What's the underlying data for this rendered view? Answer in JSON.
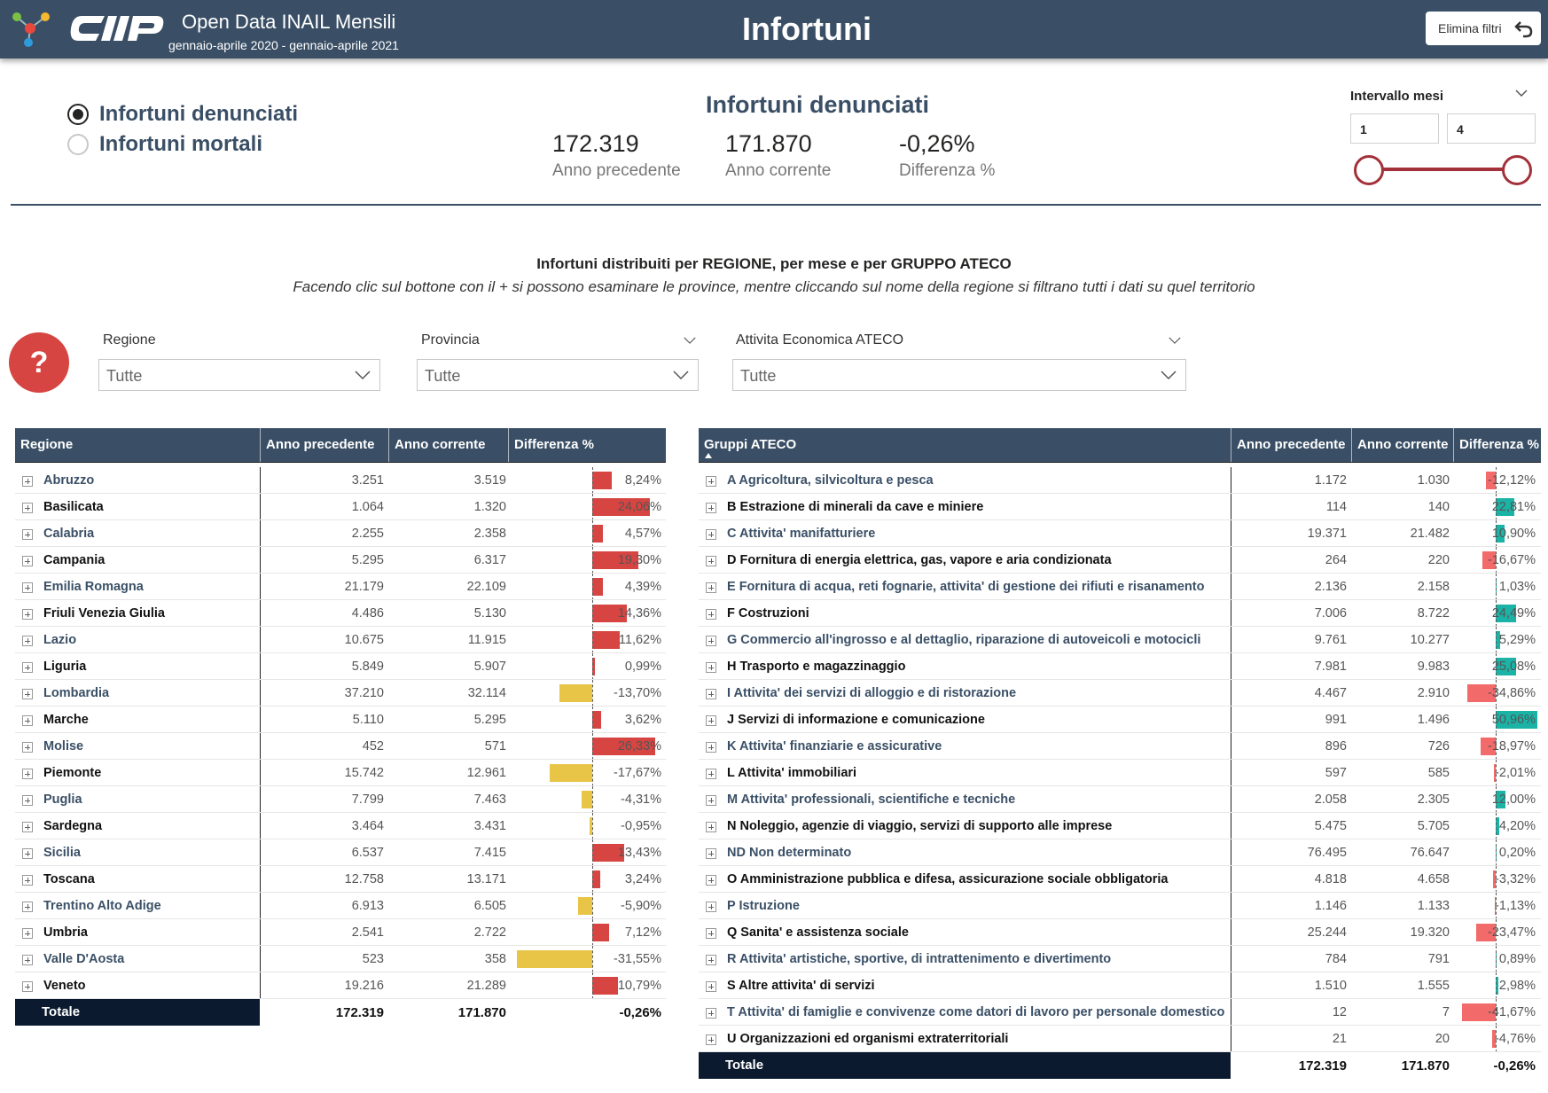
{
  "header": {
    "app_title": "Open Data INAIL Mensili",
    "period": "gennaio-aprile 2020 - gennaio-aprile 2021",
    "page_title": "Infortuni",
    "reset_label": "Elimina filtri",
    "logo_text": "CIIP"
  },
  "measure_selector": {
    "options": [
      {
        "label": "Infortuni denunciati",
        "checked": true
      },
      {
        "label": "Infortuni mortali",
        "checked": false
      }
    ]
  },
  "kpis": {
    "title": "Infortuni denunciati",
    "items": [
      {
        "value": "172.319",
        "label": "Anno precedente"
      },
      {
        "value": "171.870",
        "label": "Anno corrente"
      },
      {
        "value": "-0,26%",
        "label": "Differenza %"
      }
    ]
  },
  "month_slider": {
    "title": "Intervallo mesi",
    "from": "1",
    "to": "4",
    "color": "#a3313a"
  },
  "section": {
    "title": "Infortuni distribuiti per REGIONE, per mese e per GRUPPO ATECO",
    "subtitle": "Facendo clic sul bottone con il + si possono esaminare le province, mentre cliccando sul nome della regione si filtrano tutti i dati su quel territorio"
  },
  "help_button": {
    "label": "?",
    "color": "#d64541"
  },
  "filters": [
    {
      "label": "Regione",
      "value": "Tutte"
    },
    {
      "label": "Provincia",
      "value": "Tutte"
    },
    {
      "label": "Attivita Economica ATECO",
      "value": "Tutte"
    }
  ],
  "colors": {
    "header_bg": "#3a4f66",
    "positive_region": "#d64541",
    "negative_region": "#e8c547",
    "positive_ateco": "#1ab3a6",
    "negative_ateco": "#f26a6a",
    "total_bg": "#0b1a2e"
  },
  "region_table": {
    "columns": [
      "Regione",
      "Anno precedente",
      "Anno corrente",
      "Differenza %"
    ],
    "rows": [
      {
        "name": "Abruzzo",
        "prev": "3.251",
        "curr": "3.519",
        "diff": "8,24%",
        "pct": 8.24
      },
      {
        "name": "Basilicata",
        "prev": "1.064",
        "curr": "1.320",
        "diff": "24,06%",
        "pct": 24.06
      },
      {
        "name": "Calabria",
        "prev": "2.255",
        "curr": "2.358",
        "diff": "4,57%",
        "pct": 4.57
      },
      {
        "name": "Campania",
        "prev": "5.295",
        "curr": "6.317",
        "diff": "19,30%",
        "pct": 19.3
      },
      {
        "name": "Emilia Romagna",
        "prev": "21.179",
        "curr": "22.109",
        "diff": "4,39%",
        "pct": 4.39
      },
      {
        "name": "Friuli Venezia Giulia",
        "prev": "4.486",
        "curr": "5.130",
        "diff": "14,36%",
        "pct": 14.36
      },
      {
        "name": "Lazio",
        "prev": "10.675",
        "curr": "11.915",
        "diff": "11,62%",
        "pct": 11.62
      },
      {
        "name": "Liguria",
        "prev": "5.849",
        "curr": "5.907",
        "diff": "0,99%",
        "pct": 0.99
      },
      {
        "name": "Lombardia",
        "prev": "37.210",
        "curr": "32.114",
        "diff": "-13,70%",
        "pct": -13.7
      },
      {
        "name": "Marche",
        "prev": "5.110",
        "curr": "5.295",
        "diff": "3,62%",
        "pct": 3.62
      },
      {
        "name": "Molise",
        "prev": "452",
        "curr": "571",
        "diff": "26,33%",
        "pct": 26.33
      },
      {
        "name": "Piemonte",
        "prev": "15.742",
        "curr": "12.961",
        "diff": "-17,67%",
        "pct": -17.67
      },
      {
        "name": "Puglia",
        "prev": "7.799",
        "curr": "7.463",
        "diff": "-4,31%",
        "pct": -4.31
      },
      {
        "name": "Sardegna",
        "prev": "3.464",
        "curr": "3.431",
        "diff": "-0,95%",
        "pct": -0.95
      },
      {
        "name": "Sicilia",
        "prev": "6.537",
        "curr": "7.415",
        "diff": "13,43%",
        "pct": 13.43
      },
      {
        "name": "Toscana",
        "prev": "12.758",
        "curr": "13.171",
        "diff": "3,24%",
        "pct": 3.24
      },
      {
        "name": "Trentino Alto Adige",
        "prev": "6.913",
        "curr": "6.505",
        "diff": "-5,90%",
        "pct": -5.9
      },
      {
        "name": "Umbria",
        "prev": "2.541",
        "curr": "2.722",
        "diff": "7,12%",
        "pct": 7.12
      },
      {
        "name": "Valle D'Aosta",
        "prev": "523",
        "curr": "358",
        "diff": "-31,55%",
        "pct": -31.55
      },
      {
        "name": "Veneto",
        "prev": "19.216",
        "curr": "21.289",
        "diff": "10,79%",
        "pct": 10.79
      }
    ],
    "total": {
      "label": "Totale",
      "prev": "172.319",
      "curr": "171.870",
      "diff": "-0,26%"
    }
  },
  "ateco_table": {
    "columns": [
      "Gruppi ATECO",
      "Anno precedente",
      "Anno corrente",
      "Differenza %"
    ],
    "rows": [
      {
        "name": "A Agricoltura, silvicoltura e pesca",
        "prev": "1.172",
        "curr": "1.030",
        "diff": "-12,12%",
        "pct": -12.12
      },
      {
        "name": "B Estrazione di minerali da cave e miniere",
        "prev": "114",
        "curr": "140",
        "diff": "22,81%",
        "pct": 22.81
      },
      {
        "name": "C Attivita' manifatturiere",
        "prev": "19.371",
        "curr": "21.482",
        "diff": "10,90%",
        "pct": 10.9
      },
      {
        "name": "D Fornitura di energia elettrica, gas, vapore e aria condizionata",
        "prev": "264",
        "curr": "220",
        "diff": "-16,67%",
        "pct": -16.67
      },
      {
        "name": "E Fornitura di acqua, reti fognarie, attivita' di gestione dei rifiuti e risanamento",
        "prev": "2.136",
        "curr": "2.158",
        "diff": "1,03%",
        "pct": 1.03
      },
      {
        "name": "F Costruzioni",
        "prev": "7.006",
        "curr": "8.722",
        "diff": "24,49%",
        "pct": 24.49
      },
      {
        "name": "G Commercio all'ingrosso e al dettaglio, riparazione di autoveicoli e motocicli",
        "prev": "9.761",
        "curr": "10.277",
        "diff": "5,29%",
        "pct": 5.29
      },
      {
        "name": "H Trasporto e magazzinaggio",
        "prev": "7.981",
        "curr": "9.983",
        "diff": "25,08%",
        "pct": 25.08
      },
      {
        "name": "I Attivita' dei servizi di alloggio e di ristorazione",
        "prev": "4.467",
        "curr": "2.910",
        "diff": "-34,86%",
        "pct": -34.86
      },
      {
        "name": "J Servizi di informazione e comunicazione",
        "prev": "991",
        "curr": "1.496",
        "diff": "50,96%",
        "pct": 50.96
      },
      {
        "name": "K Attivita' finanziarie e assicurative",
        "prev": "896",
        "curr": "726",
        "diff": "-18,97%",
        "pct": -18.97
      },
      {
        "name": "L Attivita' immobiliari",
        "prev": "597",
        "curr": "585",
        "diff": "-2,01%",
        "pct": -2.01
      },
      {
        "name": "M Attivita' professionali, scientifiche e tecniche",
        "prev": "2.058",
        "curr": "2.305",
        "diff": "12,00%",
        "pct": 12.0
      },
      {
        "name": "N Noleggio, agenzie di viaggio, servizi di supporto alle imprese",
        "prev": "5.475",
        "curr": "5.705",
        "diff": "4,20%",
        "pct": 4.2
      },
      {
        "name": "ND Non determinato",
        "prev": "76.495",
        "curr": "76.647",
        "diff": "0,20%",
        "pct": 0.2
      },
      {
        "name": "O Amministrazione pubblica e difesa, assicurazione sociale obbligatoria",
        "prev": "4.818",
        "curr": "4.658",
        "diff": "-3,32%",
        "pct": -3.32
      },
      {
        "name": "P Istruzione",
        "prev": "1.146",
        "curr": "1.133",
        "diff": "-1,13%",
        "pct": -1.13
      },
      {
        "name": "Q Sanita' e assistenza sociale",
        "prev": "25.244",
        "curr": "19.320",
        "diff": "-23,47%",
        "pct": -23.47
      },
      {
        "name": "R Attivita' artistiche, sportive, di intrattenimento e divertimento",
        "prev": "784",
        "curr": "791",
        "diff": "0,89%",
        "pct": 0.89
      },
      {
        "name": "S Altre attivita' di servizi",
        "prev": "1.510",
        "curr": "1.555",
        "diff": "2,98%",
        "pct": 2.98
      },
      {
        "name": "T Attivita' di famiglie e convivenze come datori di lavoro per personale domestico",
        "prev": "12",
        "curr": "7",
        "diff": "-41,67%",
        "pct": -41.67
      },
      {
        "name": "U Organizzazioni ed organismi extraterritoriali",
        "prev": "21",
        "curr": "20",
        "diff": "-4,76%",
        "pct": -4.76
      }
    ],
    "total": {
      "label": "Totale",
      "prev": "172.319",
      "curr": "171.870",
      "diff": "-0,26%"
    }
  }
}
